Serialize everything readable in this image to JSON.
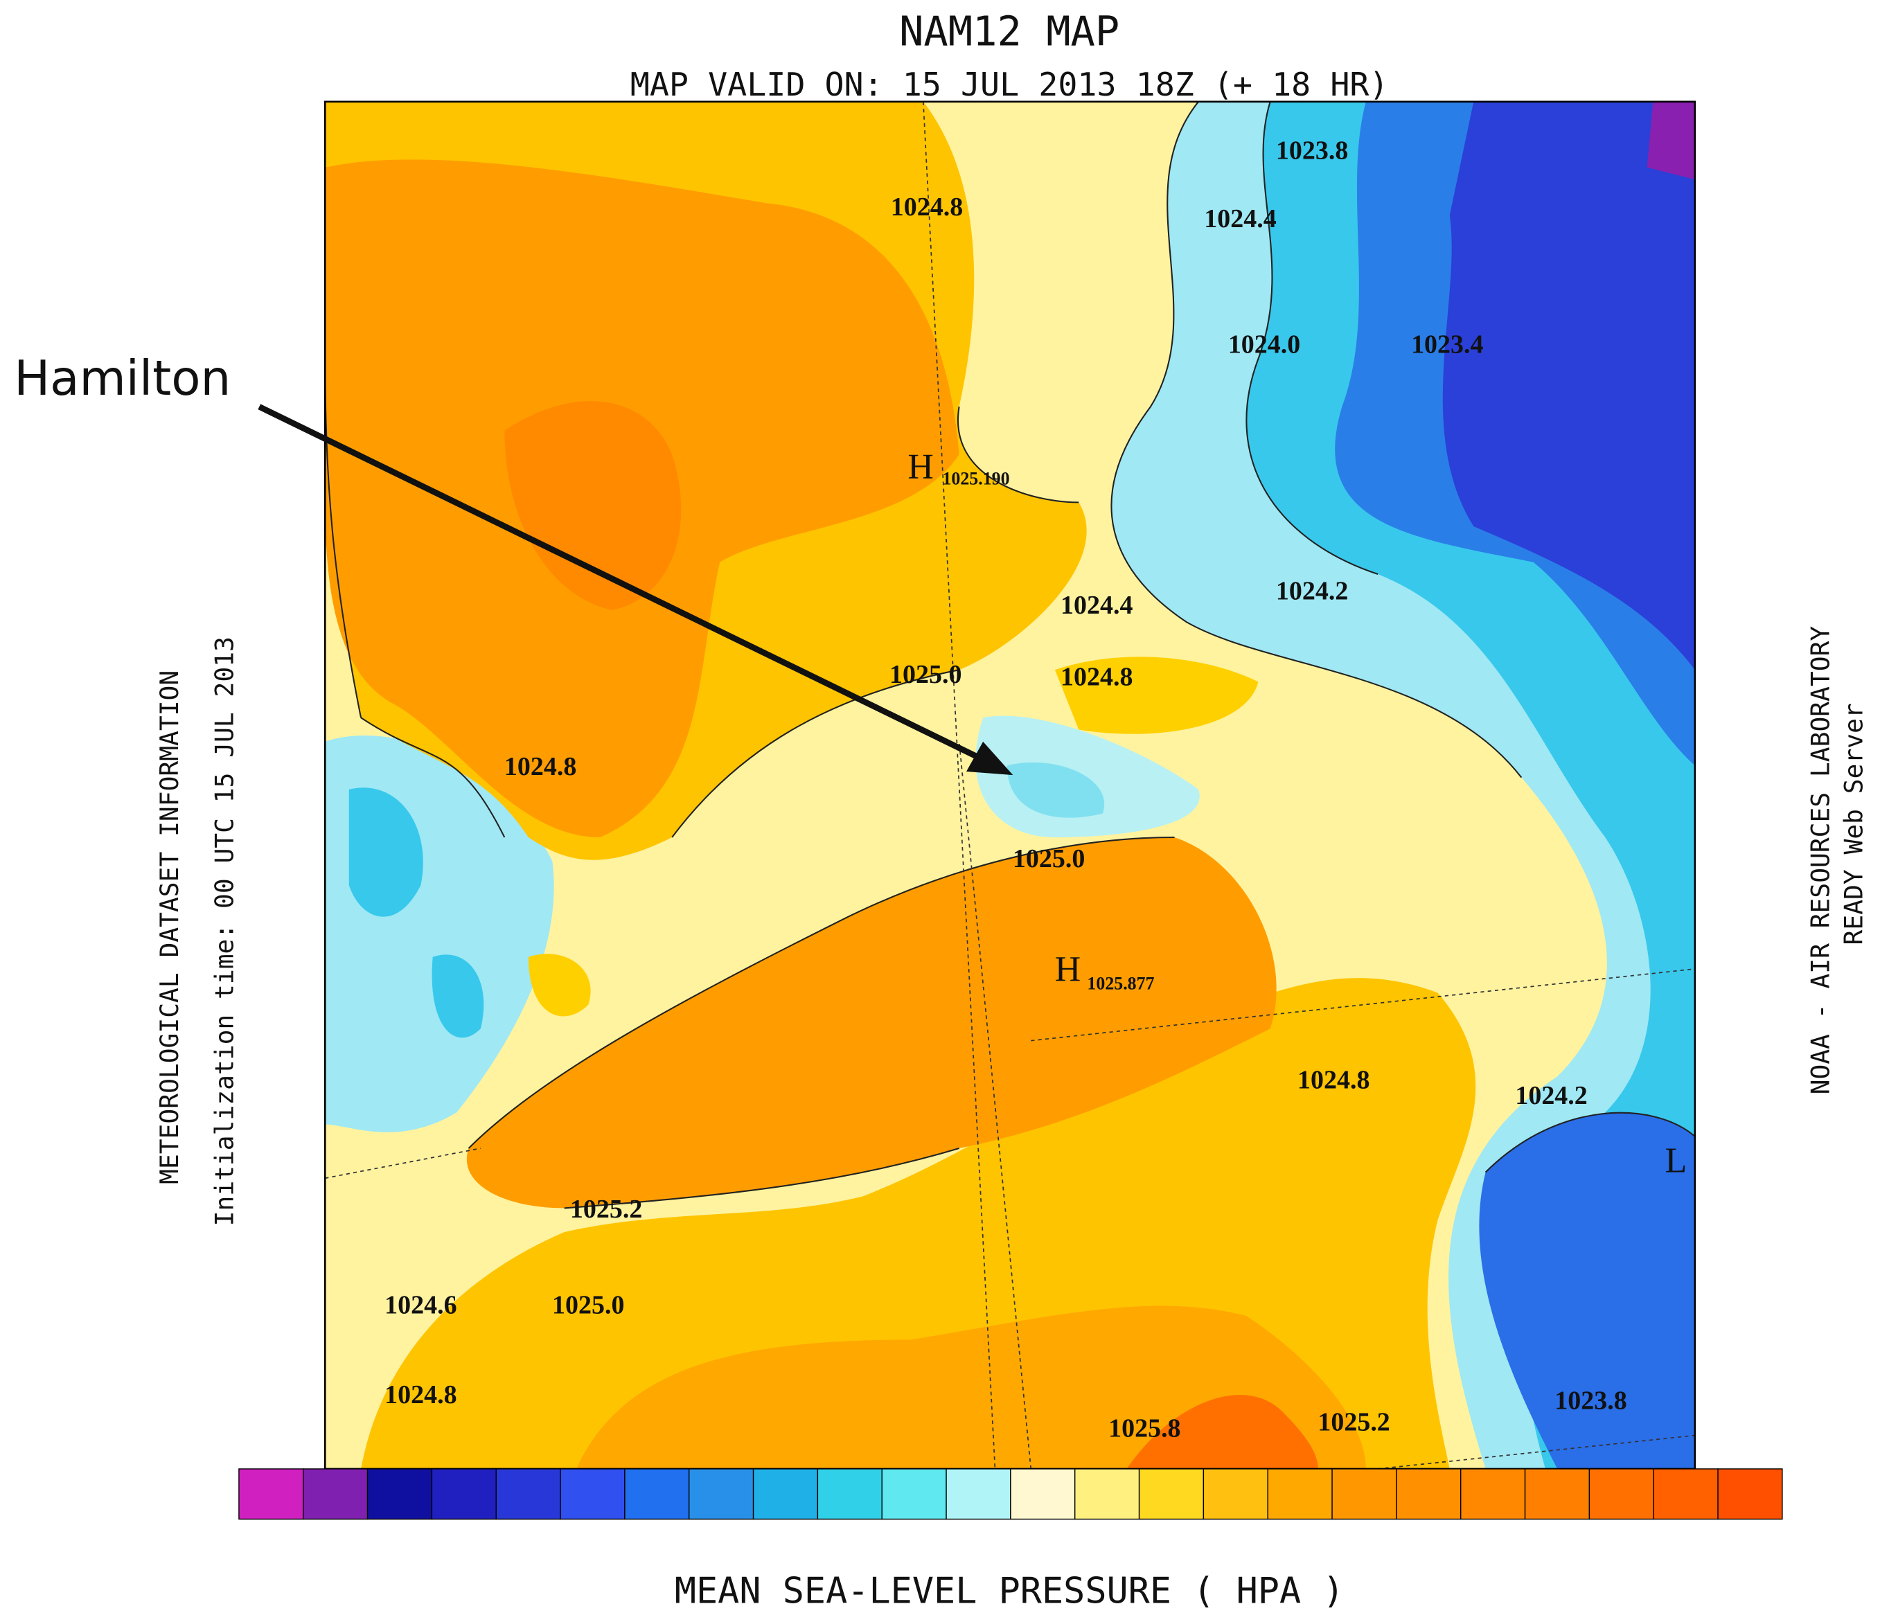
{
  "header": {
    "title": "NAM12 MAP",
    "subtitle": "MAP VALID ON: 15 JUL 2013 18Z (+ 18 HR)"
  },
  "annotation": "Hamilton",
  "side_left": [
    "METEOROLOGICAL DATASET INFORMATION",
    "Initialization time: 00 UTC 15 JUL 2013"
  ],
  "side_right": [
    "NOAA - AIR RESOURCES LABORATORY",
    "READY Web Server"
  ],
  "footer": "MEAN SEA-LEVEL PRESSURE ( HPA )",
  "map": {
    "contour_labels": [
      "1023.8",
      "1024.8",
      "1024.4",
      "1024.0",
      "1023.4",
      "1024.4",
      "1024.2",
      "1025.0",
      "1024.8",
      "1024.8",
      "1025.0",
      "1024.8",
      "1024.2",
      "1025.2",
      "1024.6",
      "1025.0",
      "1024.8",
      "1025.8",
      "1025.2",
      "1023.8"
    ],
    "highs": [
      {
        "symbol": "H",
        "value": "1025.190"
      },
      {
        "symbol": "H",
        "value": "1025.877"
      }
    ],
    "low": "L"
  }
}
